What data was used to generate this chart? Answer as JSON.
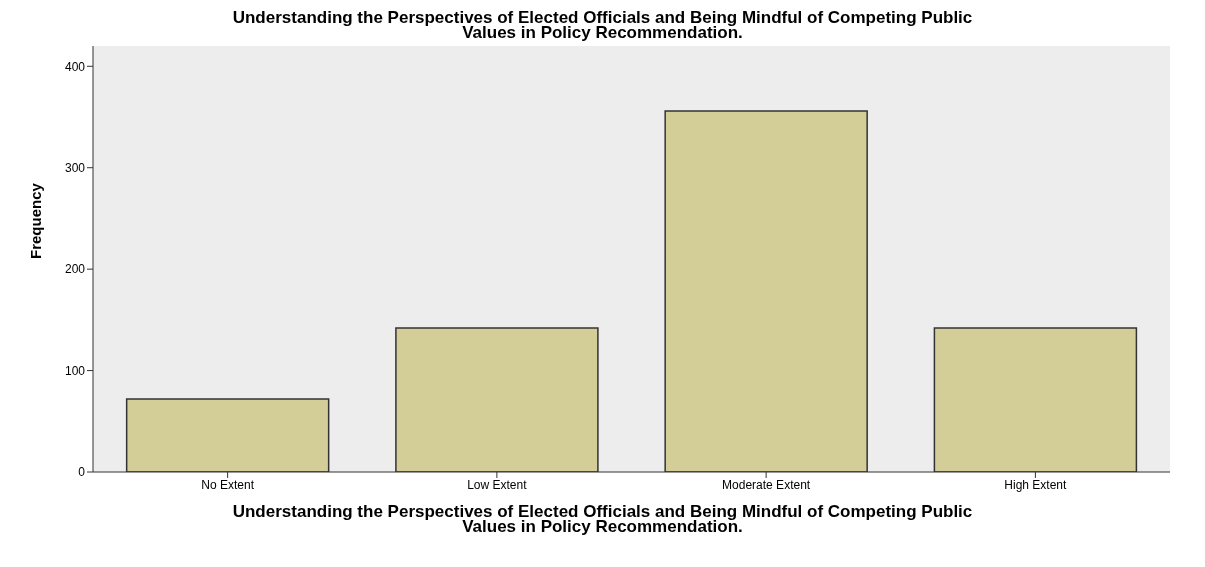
{
  "chart_data": {
    "type": "bar",
    "title": "Understanding the Perspectives of Elected Officials and Being Mindful of Competing Public Values in Policy Recommendation.",
    "xlabel": "Understanding the Perspectives of Elected Officials and Being Mindful of Competing Public Values in Policy Recommendation.",
    "ylabel": "Frequency",
    "categories": [
      "No Extent",
      "Low Extent",
      "Moderate Extent",
      "High Extent"
    ],
    "values": [
      72,
      142,
      356,
      142
    ],
    "color": "#d3ce97",
    "ylim": [
      0,
      420
    ],
    "yticks": [
      0,
      100,
      200,
      300,
      400
    ],
    "grid": false
  }
}
